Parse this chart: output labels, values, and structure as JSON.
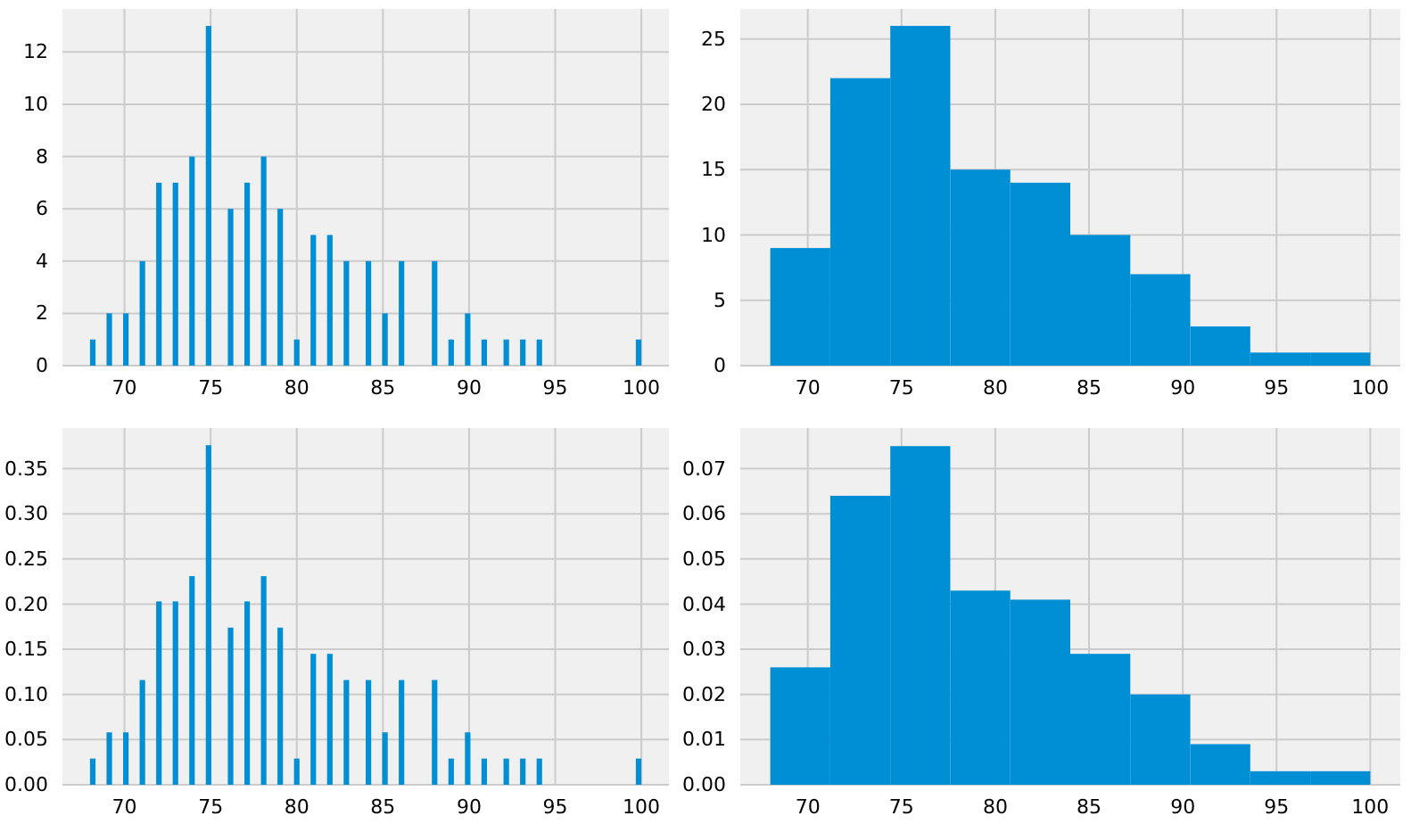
{
  "chart_data": [
    {
      "type": "histogram",
      "color": "#008fd5",
      "grid": true,
      "xlim": [
        66.4,
        101.6
      ],
      "xticks": [
        70,
        75,
        80,
        85,
        90,
        95,
        100
      ],
      "ylim": [
        0,
        13.65
      ],
      "yticks": [
        0,
        2,
        4,
        6,
        8,
        10,
        12
      ],
      "bins": [
        68,
        68.32,
        68.64,
        68.96,
        69.28,
        69.6,
        69.92,
        70.24,
        70.56,
        70.88,
        71.2,
        71.52,
        71.84,
        72.16,
        72.48,
        72.8,
        73.12,
        73.44,
        73.76,
        74.08,
        74.4,
        74.72,
        75.04,
        75.36,
        75.68,
        76,
        76.32,
        76.64,
        76.96,
        77.28,
        77.6,
        77.92,
        78.24,
        78.56,
        78.88,
        79.2,
        79.52,
        79.84,
        80.16,
        80.48,
        80.8,
        81.12,
        81.44,
        81.76,
        82.08,
        82.4,
        82.72,
        83.04,
        83.36,
        83.68,
        84,
        84.32,
        84.64,
        84.96,
        85.28,
        85.6,
        85.92,
        86.24,
        86.56,
        86.88,
        87.2,
        87.52,
        87.84,
        88.16,
        88.48,
        88.8,
        89.12,
        89.44,
        89.76,
        90.08,
        90.4,
        90.72,
        91.04,
        91.36,
        91.68,
        92,
        92.32,
        92.64,
        92.96,
        93.28,
        93.6,
        93.92,
        94.24,
        94.56,
        94.88,
        95.2,
        95.52,
        95.84,
        96.16,
        96.48,
        96.8,
        97.12,
        97.44,
        97.76,
        98.08,
        98.4,
        98.72,
        99.04,
        99.36,
        99.68,
        100
      ],
      "values": [
        1,
        0,
        0,
        2,
        0,
        0,
        2,
        0,
        0,
        4,
        0,
        0,
        7,
        0,
        0,
        7,
        0,
        0,
        8,
        0,
        0,
        13,
        0,
        0,
        0,
        6,
        0,
        0,
        7,
        0,
        0,
        8,
        0,
        0,
        6,
        0,
        0,
        1,
        0,
        0,
        5,
        0,
        0,
        5,
        0,
        0,
        4,
        0,
        0,
        0,
        4,
        0,
        0,
        2,
        0,
        0,
        4,
        0,
        0,
        0,
        0,
        0,
        4,
        0,
        0,
        1,
        0,
        0,
        2,
        0,
        0,
        1,
        0,
        0,
        0,
        1,
        0,
        0,
        1,
        0,
        0,
        1,
        0,
        0,
        0,
        0,
        0,
        0,
        0,
        0,
        0,
        0,
        0,
        0,
        0,
        0,
        0,
        0,
        0,
        1
      ]
    },
    {
      "type": "histogram",
      "color": "#008fd5",
      "grid": true,
      "xlim": [
        66.4,
        101.6
      ],
      "xticks": [
        70,
        75,
        80,
        85,
        90,
        95,
        100
      ],
      "ylim": [
        0,
        27.3
      ],
      "yticks": [
        0,
        5,
        10,
        15,
        20,
        25
      ],
      "bins": [
        68,
        71.2,
        74.4,
        77.6,
        80.8,
        84,
        87.2,
        90.4,
        93.6,
        96.8,
        100
      ],
      "values": [
        9,
        22,
        26,
        15,
        14,
        10,
        7,
        3,
        1,
        1
      ]
    },
    {
      "type": "histogram",
      "color": "#008fd5",
      "grid": true,
      "xlim": [
        66.4,
        101.6
      ],
      "xticks": [
        70,
        75,
        80,
        85,
        90,
        95,
        100
      ],
      "ylim": [
        0,
        0.395
      ],
      "yticks": [
        {
          "value": 0,
          "label": "0.00"
        },
        {
          "value": 0.05,
          "label": "0.05"
        },
        {
          "value": 0.1,
          "label": "0.10"
        },
        {
          "value": 0.15,
          "label": "0.15"
        },
        {
          "value": 0.2,
          "label": "0.20"
        },
        {
          "value": 0.25,
          "label": "0.25"
        },
        {
          "value": 0.3,
          "label": "0.30"
        },
        {
          "value": 0.35,
          "label": "0.35"
        }
      ],
      "bins": [
        68,
        68.32,
        68.64,
        68.96,
        69.28,
        69.6,
        69.92,
        70.24,
        70.56,
        70.88,
        71.2,
        71.52,
        71.84,
        72.16,
        72.48,
        72.8,
        73.12,
        73.44,
        73.76,
        74.08,
        74.4,
        74.72,
        75.04,
        75.36,
        75.68,
        76,
        76.32,
        76.64,
        76.96,
        77.28,
        77.6,
        77.92,
        78.24,
        78.56,
        78.88,
        79.2,
        79.52,
        79.84,
        80.16,
        80.48,
        80.8,
        81.12,
        81.44,
        81.76,
        82.08,
        82.4,
        82.72,
        83.04,
        83.36,
        83.68,
        84,
        84.32,
        84.64,
        84.96,
        85.28,
        85.6,
        85.92,
        86.24,
        86.56,
        86.88,
        87.2,
        87.52,
        87.84,
        88.16,
        88.48,
        88.8,
        89.12,
        89.44,
        89.76,
        90.08,
        90.4,
        90.72,
        91.04,
        91.36,
        91.68,
        92,
        92.32,
        92.64,
        92.96,
        93.28,
        93.6,
        93.92,
        94.24,
        94.56,
        94.88,
        95.2,
        95.52,
        95.84,
        96.16,
        96.48,
        96.8,
        97.12,
        97.44,
        97.76,
        98.08,
        98.4,
        98.72,
        99.04,
        99.36,
        99.68,
        100
      ],
      "values": [
        0.029,
        0,
        0,
        0.058,
        0,
        0,
        0.058,
        0,
        0,
        0.116,
        0,
        0,
        0.203,
        0,
        0,
        0.203,
        0,
        0,
        0.231,
        0,
        0,
        0.376,
        0,
        0,
        0,
        0.174,
        0,
        0,
        0.203,
        0,
        0,
        0.231,
        0,
        0,
        0.174,
        0,
        0,
        0.029,
        0,
        0,
        0.145,
        0,
        0,
        0.145,
        0,
        0,
        0.116,
        0,
        0,
        0,
        0.116,
        0,
        0,
        0.058,
        0,
        0,
        0.116,
        0,
        0,
        0,
        0,
        0,
        0.116,
        0,
        0,
        0.029,
        0,
        0,
        0.058,
        0,
        0,
        0.029,
        0,
        0,
        0,
        0.029,
        0,
        0,
        0.029,
        0,
        0,
        0.029,
        0,
        0,
        0,
        0,
        0,
        0,
        0,
        0,
        0,
        0,
        0,
        0,
        0,
        0,
        0,
        0,
        0,
        0.029
      ]
    },
    {
      "type": "histogram",
      "color": "#008fd5",
      "grid": true,
      "xlim": [
        66.4,
        101.6
      ],
      "xticks": [
        70,
        75,
        80,
        85,
        90,
        95,
        100
      ],
      "ylim": [
        0,
        0.079
      ],
      "yticks": [
        {
          "value": 0,
          "label": "0.00"
        },
        {
          "value": 0.01,
          "label": "0.01"
        },
        {
          "value": 0.02,
          "label": "0.02"
        },
        {
          "value": 0.03,
          "label": "0.03"
        },
        {
          "value": 0.04,
          "label": "0.04"
        },
        {
          "value": 0.05,
          "label": "0.05"
        },
        {
          "value": 0.06,
          "label": "0.06"
        },
        {
          "value": 0.07,
          "label": "0.07"
        }
      ],
      "bins": [
        68,
        71.2,
        74.4,
        77.6,
        80.8,
        84,
        87.2,
        90.4,
        93.6,
        96.8,
        100
      ],
      "values": [
        0.026,
        0.064,
        0.075,
        0.043,
        0.041,
        0.029,
        0.02,
        0.009,
        0.003,
        0.003
      ]
    }
  ]
}
